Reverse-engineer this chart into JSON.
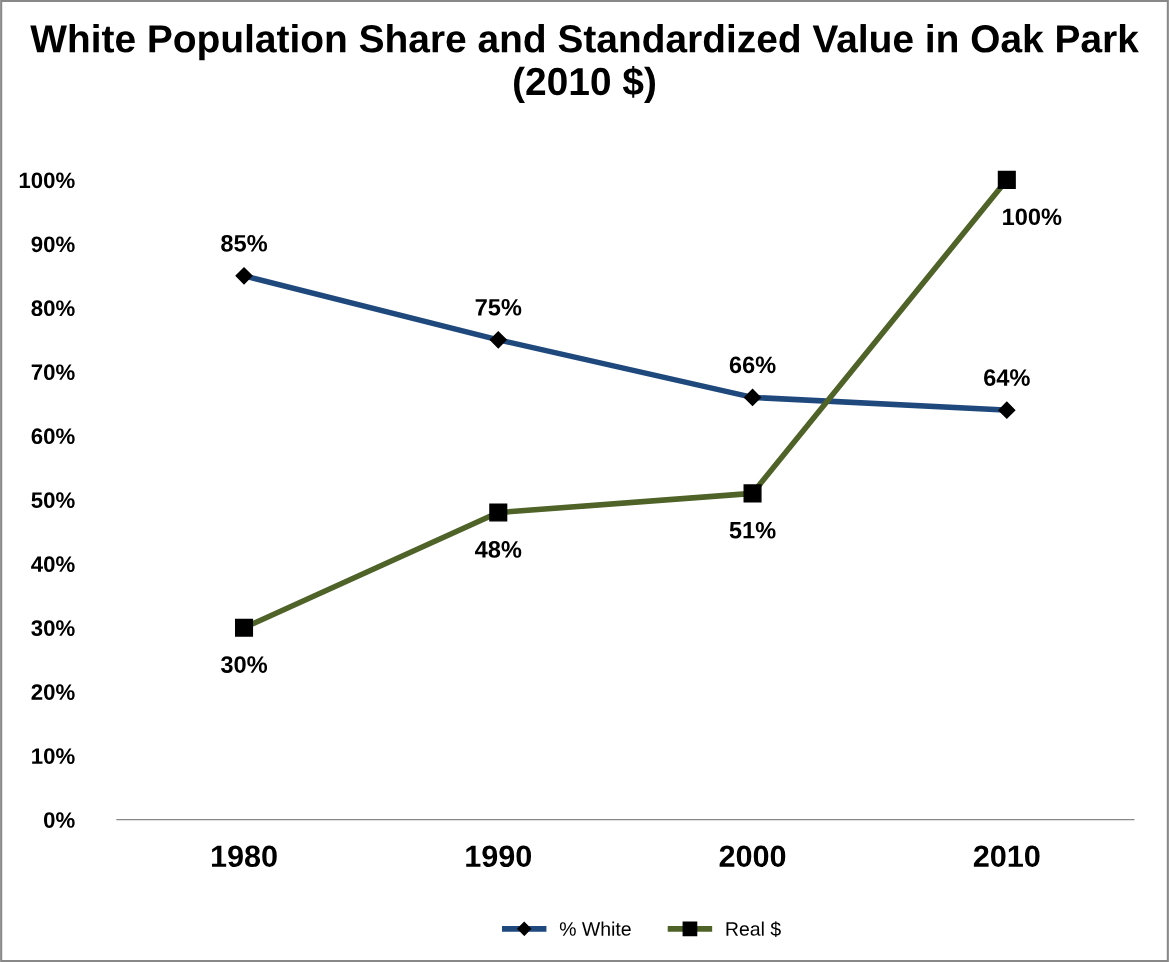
{
  "chart_data": {
    "type": "line",
    "title": "White Population Share and Standardized Value in Oak Park (2010 $)",
    "categories": [
      "1980",
      "1990",
      "2000",
      "2010"
    ],
    "series": [
      {
        "name": "% White",
        "color": "#1f497d",
        "values": [
          85,
          75,
          66,
          64
        ],
        "marker": "diamond",
        "value_labels": [
          "85%",
          "75%",
          "66%",
          "64%"
        ]
      },
      {
        "name": "Real $",
        "color": "#4f6228",
        "values": [
          30,
          48,
          51,
          100
        ],
        "marker": "square",
        "value_labels": [
          "30%",
          "48%",
          "51%",
          "100%"
        ]
      }
    ],
    "ylim": [
      0,
      100
    ],
    "yticks": [
      {
        "value": 0,
        "label": "0%"
      },
      {
        "value": 10,
        "label": "10%"
      },
      {
        "value": 20,
        "label": "20%"
      },
      {
        "value": 30,
        "label": "30%"
      },
      {
        "value": 40,
        "label": "40%"
      },
      {
        "value": 50,
        "label": "50%"
      },
      {
        "value": 60,
        "label": "60%"
      },
      {
        "value": 70,
        "label": "70%"
      },
      {
        "value": 80,
        "label": "80%"
      },
      {
        "value": 90,
        "label": "90%"
      },
      {
        "value": 100,
        "label": "100%"
      }
    ],
    "grid": false,
    "legend": "bottom",
    "line_style": "solid"
  }
}
